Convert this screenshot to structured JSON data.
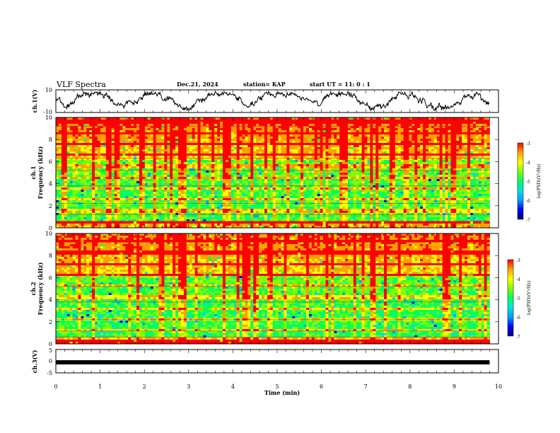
{
  "header": {
    "title": "VLF Spectra",
    "date": "Dec.21, 2024",
    "station": "station= KAP",
    "start": "start  UT =   11: 0  : 1"
  },
  "colors": {
    "spectrogram_scale": [
      "#00007a",
      "#0000ff",
      "#00a0ff",
      "#00e0e0",
      "#00ff60",
      "#80ff00",
      "#ffff00",
      "#ffa000",
      "#ff0000"
    ],
    "axis": "#000000",
    "waveform": "#000000"
  },
  "chart_data": [
    {
      "type": "line",
      "panel": "ch1-waveform",
      "ylabel": "ch.1(V)",
      "ylim": [
        -10,
        10
      ],
      "yticks": [
        "10",
        "-10"
      ],
      "x_range_min": [
        0,
        9.8
      ],
      "grid": false
    },
    {
      "type": "heatmap",
      "panel": "ch1-spectrogram",
      "ylabel_line1": "ch.1",
      "ylabel_line2": "Frequency  (kHz)",
      "ylim": [
        0,
        10
      ],
      "yticks": [
        "0",
        "2",
        "4",
        "6",
        "8",
        "10"
      ],
      "x_range_min": [
        0,
        9.8
      ],
      "colorbar": {
        "label": "log(PSD)(V²/Hz)",
        "range": [
          -7,
          -3
        ],
        "ticks": [
          "-3",
          "-4",
          "-5",
          "-6",
          "-7"
        ]
      }
    },
    {
      "type": "heatmap",
      "panel": "ch2-spectrogram",
      "ylabel_line1": "ch.2",
      "ylabel_line2": "Frequency  (kHz)",
      "ylim": [
        0,
        10
      ],
      "yticks": [
        "0",
        "2",
        "4",
        "6",
        "8",
        "10"
      ],
      "x_range_min": [
        0,
        9.8
      ],
      "colorbar": {
        "label": "log(PSD)(V²/Hz)",
        "range": [
          -7,
          -3
        ],
        "ticks": [
          "-3",
          "-4",
          "-5",
          "-6",
          "-7"
        ]
      }
    },
    {
      "type": "line",
      "panel": "ch3-waveform",
      "ylabel": "ch.3(V)",
      "ylim": [
        -5,
        5
      ],
      "yticks": [
        "5",
        "0",
        "-5"
      ],
      "x_range_min": [
        0,
        9.8
      ],
      "level": -0.5
    }
  ],
  "xaxis": {
    "label": "Time  (min)",
    "ticks": [
      "0",
      "1",
      "2",
      "3",
      "4",
      "5",
      "6",
      "7",
      "8",
      "9",
      "10"
    ],
    "xlim": [
      0,
      10
    ]
  }
}
